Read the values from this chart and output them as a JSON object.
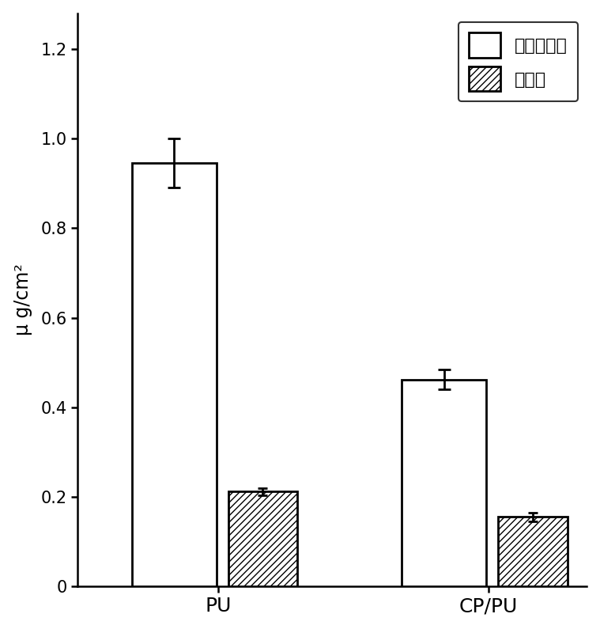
{
  "categories": [
    "PU",
    "CP/PU"
  ],
  "fibrinogen_values": [
    0.945,
    0.462
  ],
  "fibrinogen_errors": [
    0.055,
    0.022
  ],
  "albumin_values": [
    0.212,
    0.155
  ],
  "albumin_errors": [
    0.008,
    0.01
  ],
  "ylabel": "μ g/cm²",
  "ylim": [
    0,
    1.28
  ],
  "yticks": [
    0,
    0.2,
    0.4,
    0.6,
    0.8,
    1.0,
    1.2
  ],
  "legend_labels": [
    "纤维蛋白原",
    "白蛋白"
  ],
  "fib_bar_width": 0.22,
  "alb_bar_width": 0.18,
  "fibrinogen_color": "#ffffff",
  "albumin_hatch": "////",
  "edge_color": "#000000",
  "figsize": [
    7.59,
    7.95
  ],
  "dpi": 100,
  "group_centers": [
    0.35,
    1.05
  ]
}
